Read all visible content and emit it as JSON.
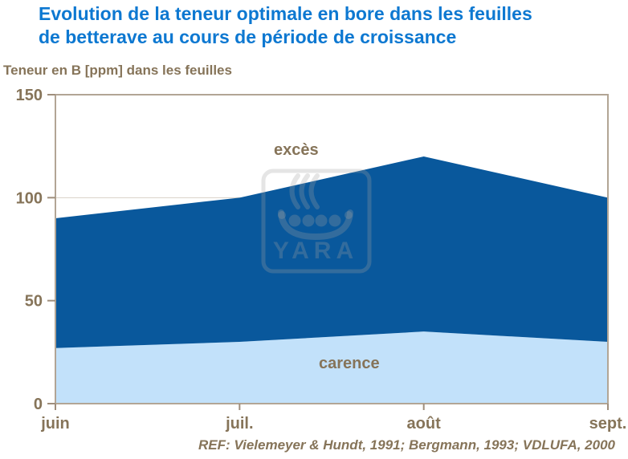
{
  "page": {
    "title_line1": "Evolution de la teneur optimale en bore dans les feuilles",
    "title_line2": "de betterave au cours de période de croissance",
    "reference": "REF: Vielemeyer & Hundt, 1991; Bergmann, 1993; VDLUFA, 2000"
  },
  "labels": {
    "exces": "excès",
    "carence": "carence"
  },
  "watermark": {
    "text": "YARA",
    "icon": "yara-viking-ship-logo"
  },
  "colors": {
    "title_blue": "#0d78d1",
    "text_brown": "#867459",
    "axis_frame": "#b2a595",
    "tick": "#9f8e7c",
    "gridline": "#d8d1c6",
    "optimal_fill": "#09589c",
    "carence_fill": "#c2e1fa",
    "watermark": "rgba(162,162,160,0.28)"
  },
  "chart_data": {
    "type": "area",
    "title": "Evolution de la teneur optimale en bore dans les feuilles de betterave au cours de période de croissance",
    "ylabel": "Teneur en B [ppm] dans les feuilles",
    "x_categories": [
      "juin",
      "juil.",
      "août",
      "sept."
    ],
    "series": [
      {
        "name": "upper_bound_optimal (limite excès)",
        "values": [
          90,
          100,
          120,
          100
        ]
      },
      {
        "name": "lower_bound_optimal (limite carence)",
        "values": [
          27,
          30,
          35,
          30
        ]
      }
    ],
    "ylim": [
      0,
      150
    ],
    "yticks": [
      0,
      50,
      100,
      150
    ],
    "gridlines_y": [
      50,
      100
    ],
    "legend_position": "none",
    "annotations": [
      {
        "text": "excès",
        "zone": "above upper bound"
      },
      {
        "text": "carence",
        "zone": "below lower bound"
      }
    ]
  }
}
